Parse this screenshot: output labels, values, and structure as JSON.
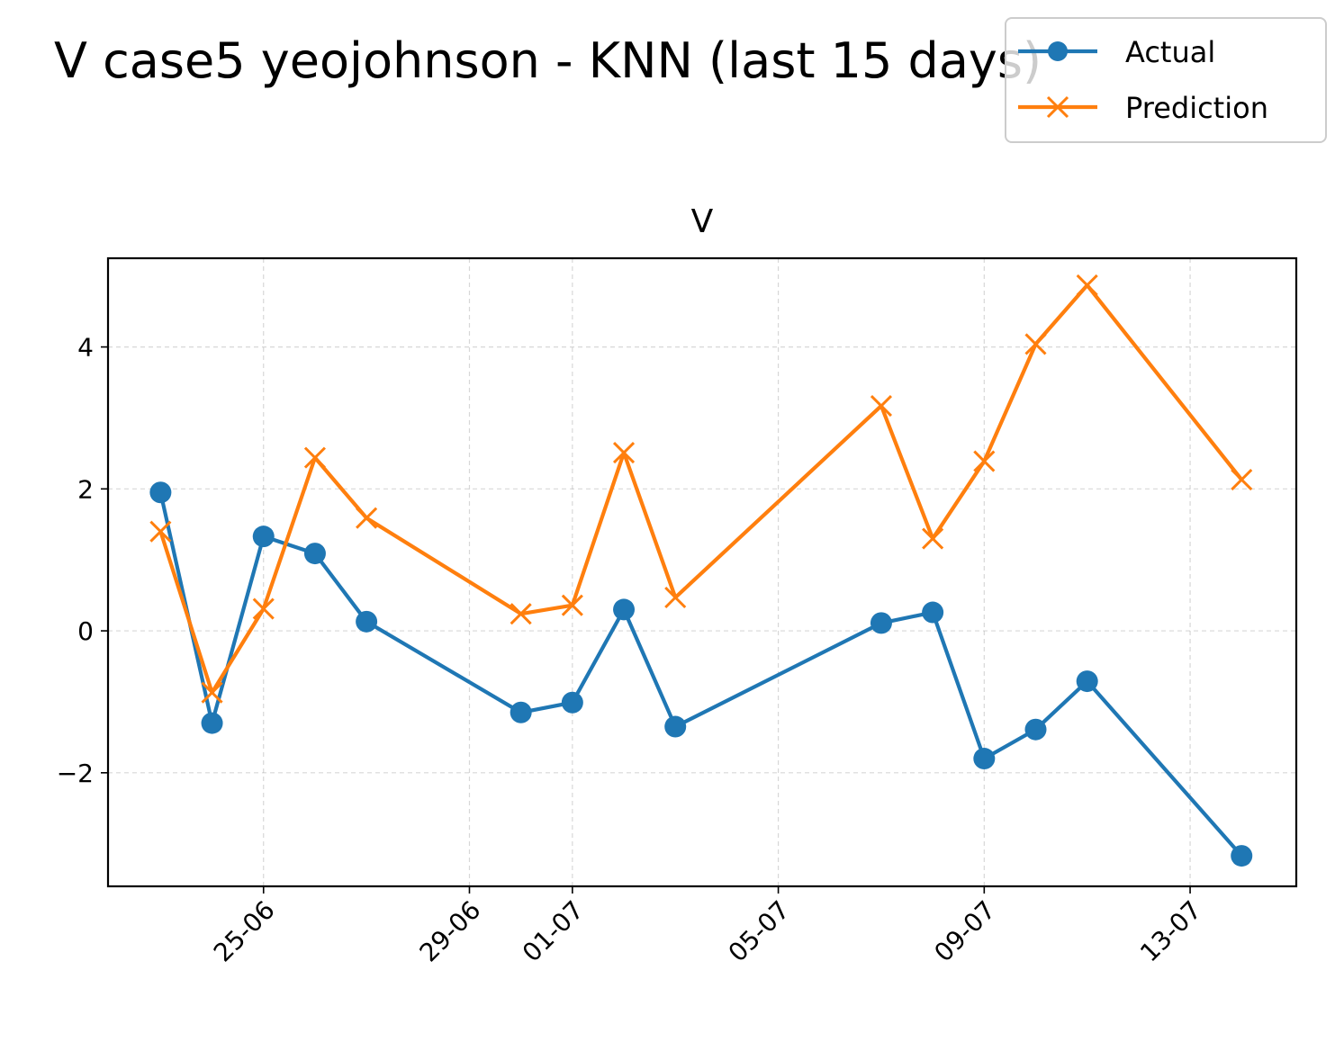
{
  "figure": {
    "suptitle": "V case5 yeojohnson - KNN (last 15 days)"
  },
  "chart_data": {
    "type": "line",
    "title": "V",
    "xlabel": "",
    "ylabel": "",
    "x_type": "date",
    "year": 2024,
    "x": [
      "2024-06-23",
      "2024-06-24",
      "2024-06-25",
      "2024-06-26",
      "2024-06-27",
      "2024-06-30",
      "2024-07-01",
      "2024-07-02",
      "2024-07-03",
      "2024-07-07",
      "2024-07-08",
      "2024-07-09",
      "2024-07-10",
      "2024-07-11",
      "2024-07-14"
    ],
    "x_tick_labels": [
      "25-06",
      "29-06",
      "01-07",
      "05-07",
      "09-07",
      "13-07"
    ],
    "x_tick_dates": [
      "2024-06-25",
      "2024-06-29",
      "2024-07-01",
      "2024-07-05",
      "2024-07-09",
      "2024-07-13"
    ],
    "xlim": [
      "2024-06-21T23:30",
      "2024-07-15T01:30"
    ],
    "y_ticks": [
      -2,
      0,
      2,
      4
    ],
    "y_tick_labels": [
      "−2",
      "0",
      "2",
      "4"
    ],
    "ylim": [
      -3.6,
      5.25
    ],
    "grid": true,
    "legend_position": "top-right",
    "series": [
      {
        "name": "Actual",
        "color": "#1f77b4",
        "marker": "circle",
        "values": [
          1.95,
          -1.3,
          1.33,
          1.09,
          0.13,
          -1.15,
          -1.01,
          0.3,
          -1.35,
          0.11,
          0.26,
          -1.8,
          -1.39,
          -0.71,
          -3.17
        ]
      },
      {
        "name": "Prediction",
        "color": "#ff7f0e",
        "marker": "x",
        "values": [
          1.4,
          -0.87,
          0.31,
          2.44,
          1.59,
          0.24,
          0.36,
          2.51,
          0.47,
          3.17,
          1.3,
          2.39,
          4.04,
          4.87,
          2.13
        ]
      }
    ]
  }
}
